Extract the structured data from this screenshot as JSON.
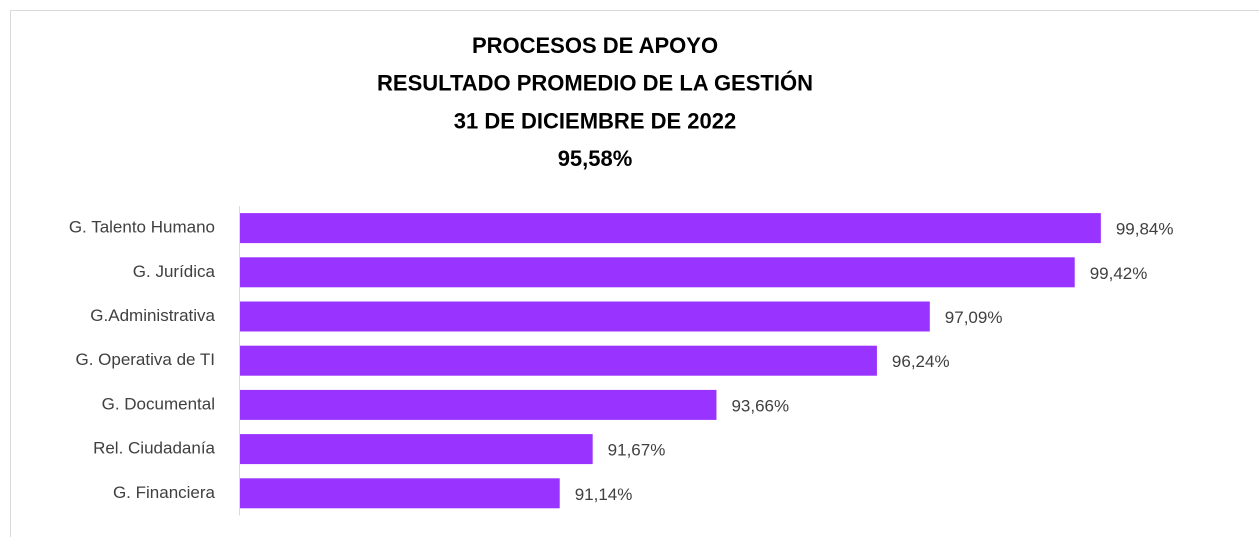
{
  "chart_data": {
    "type": "bar",
    "orientation": "horizontal",
    "title": [
      "PROCESOS DE APOYO",
      "RESULTADO  PROMEDIO DE LA GESTIÓN",
      "31 DE DICIEMBRE DE 2022",
      "95,58%"
    ],
    "categories": [
      "G. Talento Humano",
      "G. Jurídica",
      "G.Administrativa",
      "G. Operativa de TI",
      "G. Documental",
      "Rel. Ciudadanía",
      "G. Financiera"
    ],
    "values": [
      99.84,
      99.42,
      97.09,
      96.24,
      93.66,
      91.67,
      91.14
    ],
    "value_labels": [
      "99,84%",
      "99,42%",
      "97,09%",
      "96,24%",
      "93,66%",
      "91,67%",
      "91,14%"
    ],
    "color": "#9933ff",
    "xlim": [
      86,
      101
    ]
  }
}
